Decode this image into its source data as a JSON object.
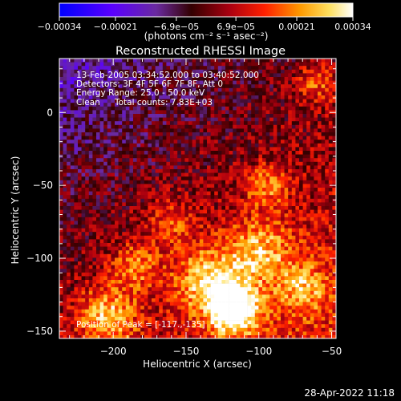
{
  "chart_data": {
    "type": "heatmap",
    "title": "Reconstructed RHESSI Image",
    "xlabel": "Heliocentric X (arcsec)",
    "ylabel": "Heliocentric Y (arcsec)",
    "xlim": [
      -237,
      -47
    ],
    "ylim": [
      -155,
      37
    ],
    "x_ticks": [
      -200,
      -150,
      -100,
      -50
    ],
    "y_ticks": [
      0,
      -50,
      -100,
      -150
    ],
    "colorbar": {
      "min": -0.00034,
      "max": 0.00034,
      "tick_values": [
        -0.00034,
        -0.00021,
        -6.9e-05,
        6.9e-05,
        0.00021,
        0.00034
      ],
      "tick_labels": [
        "−0.00034",
        "−0.00021",
        "−6.9e−05",
        "6.9e−05",
        "0.00021",
        "0.00034"
      ],
      "unit_label": "(photons cm⁻² s⁻¹ asec⁻²)",
      "colors": [
        "#0000ff",
        "#6a00ff",
        "#5a2a98",
        "#300",
        "#aa0010",
        "#ff2000",
        "#ff9a00",
        "#ffe060",
        "#ffffff"
      ]
    },
    "annotations": {
      "time_range": "13-Feb-2005 03:34:52.000 to 03:40:52.000",
      "detectors": "Detectors: 3F 4F 5F 6F 7F 8F, Att 0",
      "energy": "Energy Range: 25.0 - 50.0 keV",
      "method": "Clean",
      "counts": "Total counts: 7.83E+03",
      "peak": "Position of Peak = [-117.,-135]"
    },
    "peak_position": [
      -117,
      -135
    ],
    "grid": false
  },
  "footer_timestamp": "28-Apr-2022 11:18"
}
